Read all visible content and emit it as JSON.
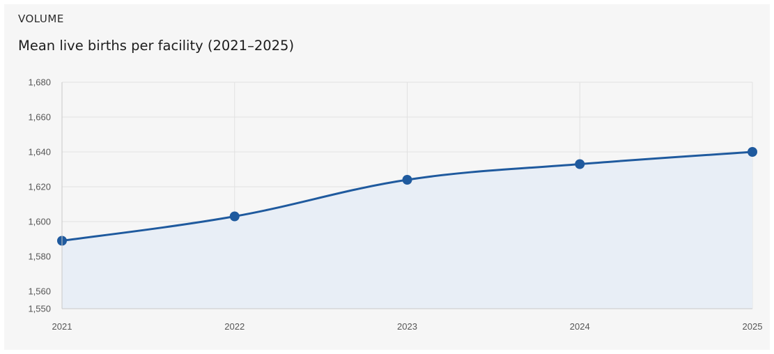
{
  "header": {
    "eyebrow": "VOLUME",
    "title": "Mean live births per facility (2021–2025)"
  },
  "colors": {
    "line": "#1f5a9e",
    "area": "#e8eef6",
    "grid": "#e1e1e1",
    "axis": "#c8c8c8",
    "background": "#f6f6f6"
  },
  "chart_data": {
    "type": "area",
    "title": "Mean live births per facility (2021–2025)",
    "xlabel": "",
    "ylabel": "",
    "categories": [
      "2021",
      "2022",
      "2023",
      "2024",
      "2025"
    ],
    "series": [
      {
        "values": [
          1589,
          1603,
          1624,
          1633,
          1640
        ]
      }
    ],
    "ylim": [
      1550,
      1680
    ],
    "yticks": [
      1550,
      1560,
      1580,
      1600,
      1620,
      1640,
      1660,
      1680
    ],
    "ytick_labels": [
      "1,550",
      "1,560",
      "1,580",
      "1,600",
      "1,620",
      "1,640",
      "1,660",
      "1,680"
    ],
    "grid": true,
    "markers": true,
    "smooth": true
  }
}
